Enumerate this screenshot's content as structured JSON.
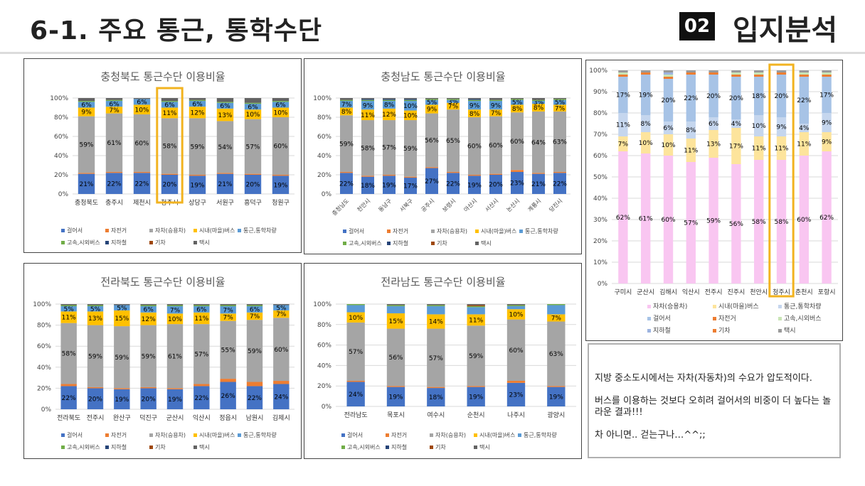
{
  "header": {
    "title": "6-1. 주요 통근, 통학수단",
    "badge": "02",
    "section": "입지분석"
  },
  "note": {
    "lines": [
      "지방 중소도시에서는 자차(자동차)의 수요가 압도적이다.",
      "버스를 이용하는 것보다 오히려 걸어서의 비중이 더 높다는 놀라운 결과!!!",
      "차 아니면.. 걷는구나…^^;;"
    ]
  },
  "colors": {
    "walk": "#4472c4",
    "bike": "#ed7d31",
    "car": "#a5a5a5",
    "bus": "#ffc000",
    "shuttle": "#5b9bd5",
    "express": "#70ad47",
    "subway": "#264478",
    "train": "#9e480e",
    "taxi": "#636363",
    "highlight": "#f2b320",
    "pink": "#f9c6f1",
    "lightyellow": "#fde49c",
    "lightblue": "#c5d6ee",
    "lightblue2": "#a7c3e6"
  },
  "chart_data": [
    {
      "type": "bar",
      "stacked": true,
      "title": "충청북도 통근수단 이용비율",
      "categories": [
        "충청북도",
        "충주시",
        "제천시",
        "청주시",
        "상당구",
        "서원구",
        "흥덕구",
        "청원구"
      ],
      "highlight": "청주시",
      "ylim": [
        0,
        100
      ],
      "yticks": [
        "0%",
        "20%",
        "40%",
        "60%",
        "80%",
        "100%"
      ],
      "series": [
        {
          "name": "걸어서",
          "key": "walk",
          "values": [
            21,
            22,
            22,
            20,
            19,
            21,
            20,
            19
          ]
        },
        {
          "name": "자전거",
          "key": "bike",
          "values": [
            1,
            1,
            1,
            1,
            1,
            1,
            1,
            1
          ]
        },
        {
          "name": "자차(승용차)",
          "key": "car",
          "values": [
            59,
            61,
            60,
            58,
            59,
            54,
            57,
            60
          ]
        },
        {
          "name": "시내(마을)버스",
          "key": "bus",
          "values": [
            9,
            7,
            10,
            11,
            12,
            13,
            10,
            10
          ]
        },
        {
          "name": "통근,통학차량",
          "key": "shuttle",
          "values": [
            6,
            6,
            6,
            6,
            6,
            6,
            6,
            6
          ]
        },
        {
          "name": "고속,시외버스",
          "key": "express",
          "values": [
            1,
            1,
            0,
            1,
            1,
            1,
            1,
            1
          ]
        },
        {
          "name": "지하철",
          "key": "subway",
          "values": [
            0,
            0,
            0,
            0,
            0,
            0,
            0,
            0
          ]
        },
        {
          "name": "기차",
          "key": "train",
          "values": [
            0,
            0,
            0,
            0,
            0,
            0,
            0,
            0
          ]
        },
        {
          "name": "택시",
          "key": "taxi",
          "values": [
            3,
            2,
            1,
            3,
            2,
            4,
            5,
            3
          ]
        }
      ],
      "labels": {
        "walk": [
          "21%",
          "22%",
          "22%",
          "20%",
          "19%",
          "21%",
          "20%",
          "19%"
        ],
        "car": [
          "59%",
          "61%",
          "60%",
          "58%",
          "59%",
          "54%",
          "57%",
          "60%"
        ],
        "bus": [
          "9%",
          "7%",
          "10%",
          "11%",
          "12%",
          "13%",
          "10%",
          "10%"
        ],
        "shuttle": [
          "6%",
          "6%",
          "6%",
          "6%",
          "6%",
          "6%",
          "6%",
          "6%"
        ]
      },
      "legend": [
        "걸어서",
        "자전거",
        "자차(승용차)",
        "시내(마을)버스",
        "통근,통학차량",
        "고속,시외버스",
        "지하철",
        "기차",
        "택시"
      ]
    },
    {
      "type": "bar",
      "stacked": true,
      "title": "충청남도 통근수단 이용비율",
      "categories": [
        "충청남도",
        "천안시",
        "동남구",
        "서북구",
        "공주시",
        "보령시",
        "아산시",
        "서산시",
        "논산시",
        "계룡시",
        "당진시"
      ],
      "rotated_labels": true,
      "ylim": [
        0,
        100
      ],
      "yticks": [
        "0%",
        "20%",
        "40%",
        "60%",
        "80%",
        "100%"
      ],
      "series": [
        {
          "name": "걸어서",
          "key": "walk",
          "values": [
            22,
            18,
            19,
            17,
            27,
            22,
            19,
            20,
            23,
            21,
            22
          ]
        },
        {
          "name": "자전거",
          "key": "bike",
          "values": [
            1,
            1,
            1,
            1,
            1,
            1,
            1,
            1,
            2,
            1,
            1
          ]
        },
        {
          "name": "자차(승용차)",
          "key": "car",
          "values": [
            59,
            58,
            57,
            59,
            56,
            65,
            60,
            60,
            60,
            64,
            63
          ]
        },
        {
          "name": "시내(마을)버스",
          "key": "bus",
          "values": [
            8,
            11,
            12,
            10,
            9,
            7,
            8,
            7,
            8,
            8,
            7
          ]
        },
        {
          "name": "통근,통학차량",
          "key": "shuttle",
          "values": [
            7,
            9,
            8,
            10,
            5,
            3,
            9,
            9,
            5,
            3,
            5
          ]
        },
        {
          "name": "고속,시외버스",
          "key": "express",
          "values": [
            1,
            1,
            1,
            1,
            1,
            1,
            1,
            1,
            1,
            1,
            1
          ]
        },
        {
          "name": "지하철",
          "key": "subway",
          "values": [
            0,
            1,
            1,
            1,
            0,
            0,
            1,
            0,
            0,
            0,
            0
          ]
        },
        {
          "name": "기차",
          "key": "train",
          "values": [
            0,
            0,
            0,
            0,
            0,
            0,
            0,
            0,
            0,
            0,
            0
          ]
        },
        {
          "name": "택시",
          "key": "taxi",
          "values": [
            2,
            1,
            1,
            1,
            1,
            1,
            1,
            2,
            1,
            2,
            1
          ]
        }
      ],
      "labels": {
        "walk": [
          "22%",
          "18%",
          "19%",
          "17%",
          "27%",
          "22%",
          "19%",
          "20%",
          "23%",
          "21%",
          "22%"
        ],
        "car": [
          "59%",
          "58%",
          "57%",
          "59%",
          "56%",
          "65%",
          "60%",
          "60%",
          "60%",
          "64%",
          "63%"
        ],
        "bus": [
          "8%",
          "11%",
          "12%",
          "10%",
          "9%",
          "7%",
          "8%",
          "7%",
          "8%",
          "8%",
          "7%"
        ],
        "shuttle": [
          "7%",
          "9%",
          "8%",
          "10%",
          "5%",
          "3%",
          "9%",
          "9%",
          "5%",
          "3%",
          "5%"
        ]
      },
      "legend": [
        "걸어서",
        "자전거",
        "자차(승용차)",
        "시내(마을)버스",
        "통근,통학차량",
        "고속,시외버스",
        "지하철",
        "기차",
        "택시"
      ]
    },
    {
      "type": "bar",
      "stacked": true,
      "title": "전라북도 통근수단 이용비율",
      "categories": [
        "전라북도",
        "전주시",
        "완산구",
        "덕진구",
        "군산시",
        "익산시",
        "정읍시",
        "남원시",
        "김제시"
      ],
      "ylim": [
        0,
        100
      ],
      "yticks": [
        "0%",
        "20%",
        "40%",
        "60%",
        "80%",
        "100%"
      ],
      "series": [
        {
          "name": "걸어서",
          "key": "walk",
          "values": [
            22,
            20,
            19,
            20,
            19,
            22,
            26,
            22,
            24
          ]
        },
        {
          "name": "자전거",
          "key": "bike",
          "values": [
            2,
            1,
            1,
            1,
            1,
            2,
            3,
            4,
            3
          ]
        },
        {
          "name": "자차(승용차)",
          "key": "car",
          "values": [
            58,
            59,
            59,
            59,
            61,
            57,
            55,
            59,
            60
          ]
        },
        {
          "name": "시내(마을)버스",
          "key": "bus",
          "values": [
            11,
            13,
            15,
            12,
            10,
            11,
            7,
            7,
            7
          ]
        },
        {
          "name": "통근,통학차량",
          "key": "shuttle",
          "values": [
            5,
            5,
            5,
            6,
            7,
            6,
            7,
            6,
            5
          ]
        },
        {
          "name": "고속,시외버스",
          "key": "express",
          "values": [
            1,
            1,
            0,
            1,
            1,
            1,
            1,
            1,
            0
          ]
        },
        {
          "name": "지하철",
          "key": "subway",
          "values": [
            0,
            0,
            0,
            0,
            0,
            0,
            0,
            0,
            0
          ]
        },
        {
          "name": "기차",
          "key": "train",
          "values": [
            0,
            0,
            0,
            0,
            0,
            0,
            0,
            0,
            0
          ]
        },
        {
          "name": "택시",
          "key": "taxi",
          "values": [
            1,
            1,
            1,
            1,
            1,
            1,
            1,
            1,
            1
          ]
        }
      ],
      "labels": {
        "walk": [
          "22%",
          "20%",
          "19%",
          "20%",
          "19%",
          "22%",
          "26%",
          "22%",
          "24%"
        ],
        "car": [
          "58%",
          "59%",
          "59%",
          "59%",
          "61%",
          "57%",
          "55%",
          "59%",
          "60%"
        ],
        "bus": [
          "11%",
          "13%",
          "15%",
          "12%",
          "10%",
          "11%",
          "7%",
          "7%",
          "7%"
        ],
        "shuttle": [
          "5%",
          "5%",
          "5%",
          "6%",
          "7%",
          "6%",
          "7%",
          "6%",
          "5%"
        ]
      },
      "legend": [
        "걸어서",
        "자전거",
        "자차(승용차)",
        "시내(마을)버스",
        "통근,통학차량",
        "고속,시외버스",
        "지하철",
        "기차",
        "택시"
      ]
    },
    {
      "type": "bar",
      "stacked": true,
      "title": "전라남도 통근수단 이용비율",
      "categories": [
        "전라남도",
        "목포시",
        "여수시",
        "순천시",
        "나주시",
        "광양시"
      ],
      "ylim": [
        0,
        100
      ],
      "yticks": [
        "0%",
        "20%",
        "40%",
        "60%",
        "80%",
        "100%"
      ],
      "series": [
        {
          "name": "걸어서",
          "key": "walk",
          "values": [
            24,
            19,
            18,
            19,
            23,
            19
          ]
        },
        {
          "name": "자전거",
          "key": "bike",
          "values": [
            1,
            1,
            1,
            1,
            2,
            1
          ]
        },
        {
          "name": "자차(승용차)",
          "key": "car",
          "values": [
            57,
            56,
            57,
            59,
            60,
            63
          ]
        },
        {
          "name": "시내(마을)버스",
          "key": "bus",
          "values": [
            10,
            15,
            14,
            11,
            10,
            7
          ]
        },
        {
          "name": "통근,통학차량",
          "key": "shuttle",
          "values": [
            7,
            7,
            8,
            7,
            3,
            9
          ]
        },
        {
          "name": "고속,시외버스",
          "key": "express",
          "values": [
            1,
            1,
            1,
            1,
            1,
            1
          ]
        },
        {
          "name": "지하철",
          "key": "subway",
          "values": [
            0,
            0,
            0,
            0,
            0,
            0
          ]
        },
        {
          "name": "기차",
          "key": "train",
          "values": [
            0,
            0,
            0,
            1,
            0,
            0
          ]
        },
        {
          "name": "택시",
          "key": "taxi",
          "values": [
            0,
            1,
            1,
            1,
            1,
            0
          ]
        }
      ],
      "labels": {
        "walk": [
          "24%",
          "19%",
          "18%",
          "19%",
          "23%",
          "19%"
        ],
        "car": [
          "57%",
          "56%",
          "57%",
          "59%",
          "60%",
          "63%"
        ],
        "bus": [
          "10%",
          "15%",
          "14%",
          "11%",
          "10%",
          "7%"
        ]
      },
      "legend": [
        "걸어서",
        "자전거",
        "자차(승용차)",
        "시내(마을)버스",
        "통근,통학차량",
        "고속,시외버스",
        "지하철",
        "기차",
        "택시"
      ]
    },
    {
      "type": "bar",
      "stacked": true,
      "title": "",
      "categories": [
        "구미시",
        "군산시",
        "김해시",
        "익산시",
        "전주시",
        "진주시",
        "천안시",
        "청주시",
        "춘천시",
        "포항시"
      ],
      "highlight": "청주시",
      "ylim": [
        0,
        100
      ],
      "yticks": [
        "0%",
        "10%",
        "20%",
        "30%",
        "40%",
        "50%",
        "60%",
        "70%",
        "80%",
        "90%",
        "100%"
      ],
      "series": [
        {
          "name": "자차(승용차)",
          "key": "car2",
          "values": [
            62,
            61,
            60,
            57,
            59,
            56,
            58,
            58,
            60,
            62
          ]
        },
        {
          "name": "시내(마을)버스",
          "key": "bus2",
          "values": [
            7,
            10,
            10,
            11,
            13,
            17,
            11,
            11,
            11,
            9
          ]
        },
        {
          "name": "통근,통학차량",
          "key": "shuttle2",
          "values": [
            11,
            8,
            6,
            8,
            6,
            4,
            10,
            9,
            4,
            9
          ]
        },
        {
          "name": "걸어서",
          "key": "walk2",
          "values": [
            17,
            19,
            20,
            22,
            20,
            20,
            18,
            20,
            22,
            17
          ]
        },
        {
          "name": "자전거",
          "key": "bike2",
          "values": [
            1,
            1,
            1,
            1,
            1,
            1,
            1,
            1,
            1,
            1
          ]
        },
        {
          "name": "고속,시외버스",
          "key": "express2",
          "values": [
            1,
            0,
            1,
            0,
            0,
            1,
            1,
            0,
            1,
            1
          ]
        },
        {
          "name": "지하철",
          "key": "subway2",
          "values": [
            0,
            0,
            1,
            0,
            0,
            0,
            0,
            0,
            0,
            0
          ]
        },
        {
          "name": "기차",
          "key": "train2",
          "values": [
            0,
            0,
            0,
            0,
            0,
            0,
            0,
            0,
            0,
            0
          ]
        },
        {
          "name": "택시",
          "key": "taxi2",
          "values": [
            1,
            1,
            1,
            1,
            1,
            1,
            1,
            1,
            1,
            1
          ]
        }
      ],
      "labels": {
        "car2": [
          "62%",
          "61%",
          "60%",
          "57%",
          "59%",
          "56%",
          "58%",
          "58%",
          "60%",
          "62%"
        ],
        "bus2": [
          "7%",
          "10%",
          "10%",
          "11%",
          "13%",
          "17%",
          "11%",
          "11%",
          "11%",
          "9%"
        ],
        "shuttle2": [
          "11%",
          "8%",
          "6%",
          "8%",
          "6%",
          "4%",
          "10%",
          "9%",
          "4%",
          "9%"
        ],
        "walk2": [
          "17%",
          "19%",
          "20%",
          "22%",
          "20%",
          "20%",
          "18%",
          "20%",
          "22%",
          "17%"
        ]
      },
      "legend": [
        "자차(승용차)",
        "시내(마을)버스",
        "통근,통학차량",
        "걸어서",
        "자전거",
        "고속,시외버스",
        "지하철",
        "기차",
        "택시"
      ]
    }
  ]
}
